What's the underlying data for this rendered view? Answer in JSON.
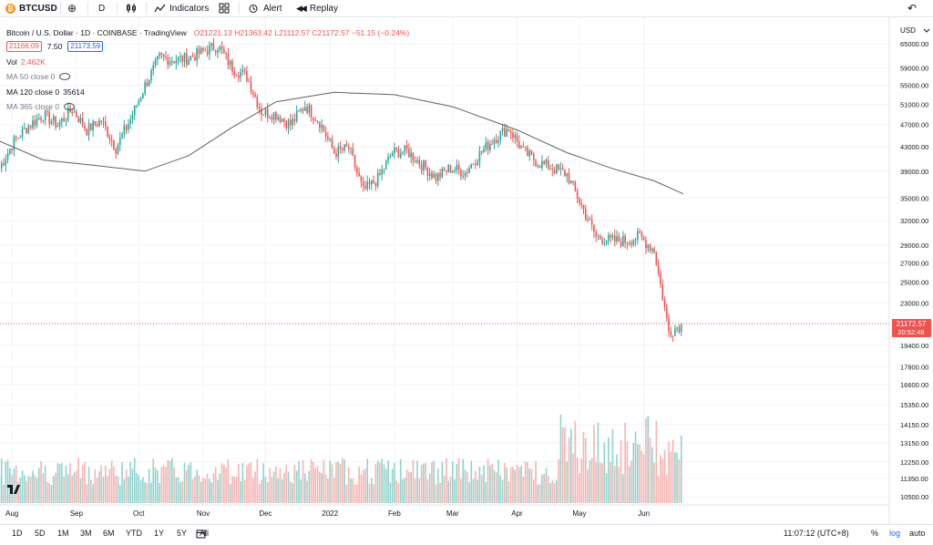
{
  "toolbar": {
    "symbol": "BTCUSD",
    "interval": "D",
    "indicators": "Indicators",
    "alert": "Alert",
    "replay": "Replay"
  },
  "legend": {
    "title": "Bitcoin / U.S. Dollar · 1D · COINBASE · TradingView",
    "o_label": "O",
    "o_val": "21221.13",
    "h_label": "H",
    "h_val": "21363.42",
    "l_label": "L",
    "l_val": "21112.57",
    "c_label": "C",
    "c_val": "21172.57",
    "change": "−51.15 (−0.24%)",
    "bid": "21166.09",
    "spread": "7.50",
    "ask": "21173.59",
    "vol_label": "Vol",
    "vol_val": "2.462K",
    "ma50": "MA 50 close 0",
    "ma120": "MA 120 close 0",
    "ma120_val": "35614",
    "ma365": "MA 365 close 0"
  },
  "price_scale": {
    "currency": "USD",
    "last_price": "21172.57",
    "countdown": "20:52:48",
    "ticks": [
      "65000.00",
      "59000.00",
      "55000.00",
      "51000.00",
      "47000.00",
      "43000.00",
      "39000.00",
      "35000.00",
      "32000.00",
      "29000.00",
      "27000.00",
      "25000.00",
      "23000.00",
      "19400.00",
      "17800.00",
      "16600.00",
      "15350.00",
      "14150.00",
      "13150.00",
      "12250.00",
      "11350.00",
      "10500.00"
    ]
  },
  "time_scale": {
    "labels": [
      "Aug",
      "Sep",
      "Oct",
      "Nov",
      "Dec",
      "2022",
      "Feb",
      "Mar",
      "Apr",
      "May",
      "Jun"
    ]
  },
  "bottom": {
    "ranges": [
      "1D",
      "5D",
      "1M",
      "3M",
      "6M",
      "YTD",
      "1Y",
      "5Y",
      "All"
    ],
    "clock": "11:07:12 (UTC+8)",
    "percent": "%",
    "log": "log",
    "auto": "auto"
  },
  "colors": {
    "up": "#26a69a",
    "down": "#ef5350",
    "up_volume": "#8fd3cc",
    "down_volume": "#f5b3b1",
    "ma": "#616161",
    "accent": "#2962ff"
  },
  "chart_data": {
    "type": "candlestick",
    "title": "Bitcoin / U.S. Dollar · 1D · COINBASE · TradingView",
    "scale": "log",
    "y_range": [
      10500,
      65000
    ],
    "weekly_close": [
      {
        "date": "2021-07-26",
        "close": 39500
      },
      {
        "date": "2021-08-02",
        "close": 44000
      },
      {
        "date": "2021-08-09",
        "close": 46800
      },
      {
        "date": "2021-08-16",
        "close": 48900
      },
      {
        "date": "2021-08-23",
        "close": 47000
      },
      {
        "date": "2021-08-30",
        "close": 50000
      },
      {
        "date": "2021-09-06",
        "close": 46000
      },
      {
        "date": "2021-09-13",
        "close": 47800
      },
      {
        "date": "2021-09-20",
        "close": 42800
      },
      {
        "date": "2021-09-27",
        "close": 48000
      },
      {
        "date": "2021-10-04",
        "close": 55000
      },
      {
        "date": "2021-10-11",
        "close": 61500
      },
      {
        "date": "2021-10-18",
        "close": 61000
      },
      {
        "date": "2021-10-25",
        "close": 61300
      },
      {
        "date": "2021-11-01",
        "close": 63000
      },
      {
        "date": "2021-11-08",
        "close": 64500
      },
      {
        "date": "2021-11-15",
        "close": 59000
      },
      {
        "date": "2021-11-22",
        "close": 57000
      },
      {
        "date": "2021-11-29",
        "close": 49500
      },
      {
        "date": "2021-12-06",
        "close": 49000
      },
      {
        "date": "2021-12-13",
        "close": 47000
      },
      {
        "date": "2021-12-20",
        "close": 50800
      },
      {
        "date": "2021-12-27",
        "close": 47500
      },
      {
        "date": "2022-01-03",
        "close": 42000
      },
      {
        "date": "2022-01-10",
        "close": 42800
      },
      {
        "date": "2022-01-17",
        "close": 36000
      },
      {
        "date": "2022-01-24",
        "close": 37800
      },
      {
        "date": "2022-01-31",
        "close": 42000
      },
      {
        "date": "2022-02-07",
        "close": 42300
      },
      {
        "date": "2022-02-14",
        "close": 40100
      },
      {
        "date": "2022-02-21",
        "close": 38000
      },
      {
        "date": "2022-02-28",
        "close": 39500
      },
      {
        "date": "2022-03-07",
        "close": 38800
      },
      {
        "date": "2022-03-14",
        "close": 41800
      },
      {
        "date": "2022-03-21",
        "close": 44500
      },
      {
        "date": "2022-03-28",
        "close": 46400
      },
      {
        "date": "2022-04-04",
        "close": 42200
      },
      {
        "date": "2022-04-11",
        "close": 40400
      },
      {
        "date": "2022-04-18",
        "close": 39500
      },
      {
        "date": "2022-04-25",
        "close": 38500
      },
      {
        "date": "2022-05-02",
        "close": 34000
      },
      {
        "date": "2022-05-09",
        "close": 30000
      },
      {
        "date": "2022-05-16",
        "close": 29500
      },
      {
        "date": "2022-05-23",
        "close": 29500
      },
      {
        "date": "2022-05-30",
        "close": 30000
      },
      {
        "date": "2022-06-06",
        "close": 28400
      },
      {
        "date": "2022-06-13",
        "close": 20500
      },
      {
        "date": "2022-06-20",
        "close": 21172.57
      }
    ],
    "ma120": [
      {
        "date": "2021-07-26",
        "value": 44000
      },
      {
        "date": "2021-08-16",
        "value": 40800
      },
      {
        "date": "2021-09-13",
        "value": 39800
      },
      {
        "date": "2021-10-04",
        "value": 39000
      },
      {
        "date": "2021-10-25",
        "value": 41500
      },
      {
        "date": "2021-11-15",
        "value": 46500
      },
      {
        "date": "2021-12-06",
        "value": 51500
      },
      {
        "date": "2022-01-03",
        "value": 53500
      },
      {
        "date": "2022-02-01",
        "value": 53000
      },
      {
        "date": "2022-03-01",
        "value": 50500
      },
      {
        "date": "2022-04-01",
        "value": 46000
      },
      {
        "date": "2022-04-25",
        "value": 42000
      },
      {
        "date": "2022-05-16",
        "value": 39500
      },
      {
        "date": "2022-06-06",
        "value": 37500
      },
      {
        "date": "2022-06-20",
        "value": 35614
      }
    ]
  }
}
